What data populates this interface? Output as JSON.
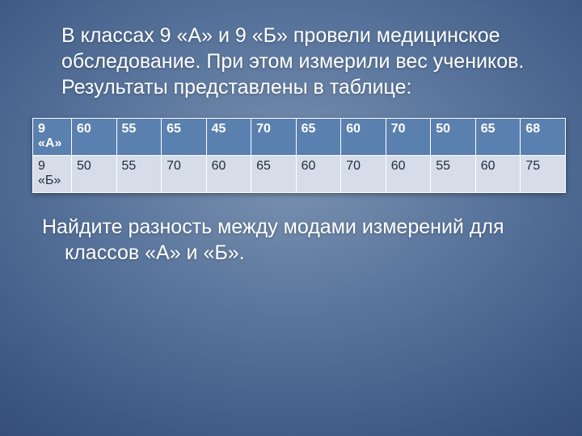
{
  "intro_text": "В классах 9 «А» и 9 «Б» провели медицинское обследование. При этом измерили вес учеников. Результаты представлены в таблице:",
  "question_text": "Найдите разность между модами измерений для классов «А» и «Б».",
  "table": {
    "type": "table",
    "background_color": "#ffffff",
    "border_color": "#ffffff",
    "header_row_bg": "#5a80b0",
    "header_row_text": "#ffffff",
    "data_row_bg": "#d6dde8",
    "data_row_text": "#1f2d3d",
    "font_size": 16,
    "col_count": 12,
    "rows": [
      {
        "label": "9 «А»",
        "values": [
          "60",
          "55",
          "65",
          "45",
          "70",
          "65",
          "60",
          "70",
          "50",
          "65",
          "68"
        ]
      },
      {
        "label": "9 «Б»",
        "values": [
          "50",
          "55",
          "70",
          "60",
          "65",
          "60",
          "70",
          "60",
          "55",
          "60",
          "75"
        ]
      }
    ]
  },
  "style": {
    "slide_bg_center": "#7a91b0",
    "slide_bg_edge": "#1a2f54",
    "body_text_color": "#ffffff",
    "body_font_size": 25
  }
}
